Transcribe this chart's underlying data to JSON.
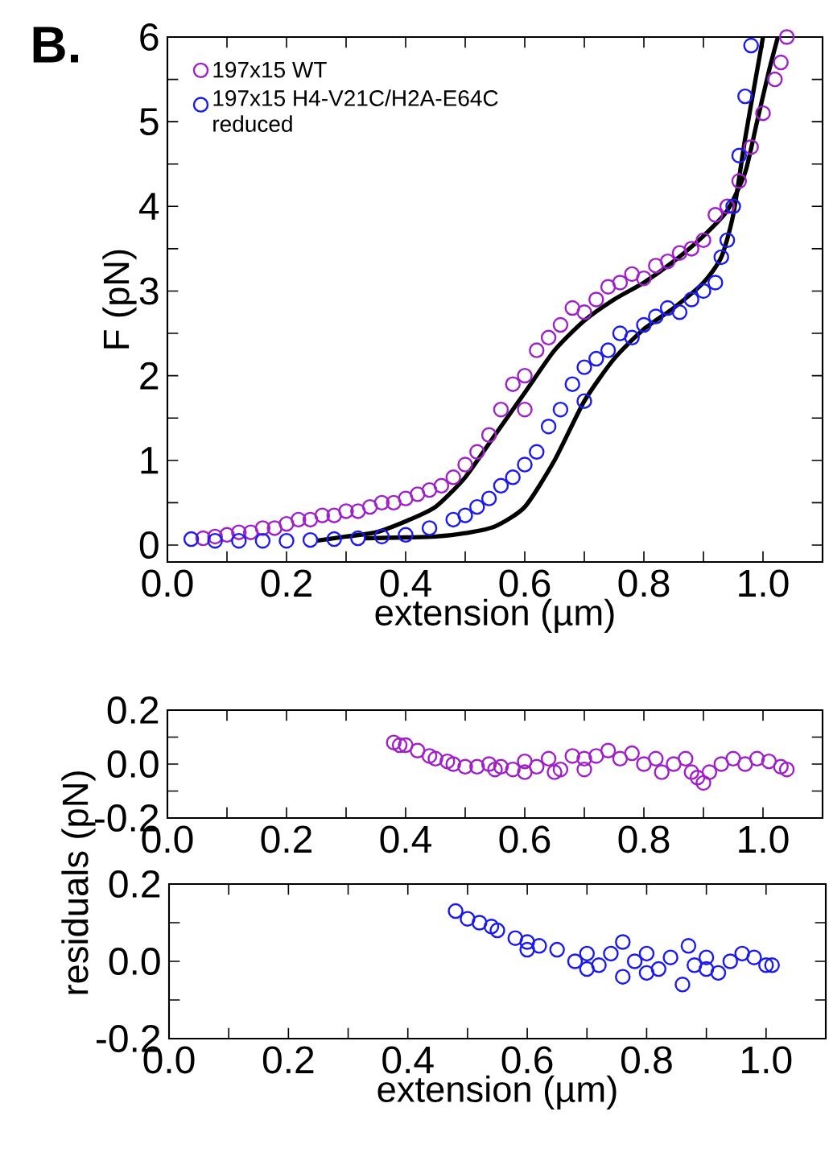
{
  "chart_data": [
    {
      "type": "scatter",
      "xlabel": "extension (µm)",
      "ylabel": "F (pN)",
      "annotations": [
        "B."
      ],
      "marker": "circle",
      "legend": "top left",
      "grid": false,
      "xlim": [
        0,
        1.1
      ],
      "ylim": [
        -0.2,
        6
      ],
      "xticks": [
        {
          "value": 0,
          "label": "0.0"
        },
        {
          "value": 0.1,
          "label": null
        },
        {
          "value": 0.2,
          "label": "0.2"
        },
        {
          "value": 0.3,
          "label": null
        },
        {
          "value": 0.4,
          "label": "0.4"
        },
        {
          "value": 0.5,
          "label": null
        },
        {
          "value": 0.6,
          "label": "0.6"
        },
        {
          "value": 0.7,
          "label": null
        },
        {
          "value": 0.8,
          "label": "0.8"
        },
        {
          "value": 0.9,
          "label": null
        },
        {
          "value": 1.0,
          "label": "1.0"
        }
      ],
      "yticks": [
        0,
        {
          "value": 0.5,
          "label": null
        },
        1,
        {
          "value": 1.5,
          "label": null
        },
        2,
        {
          "value": 2.5,
          "label": null
        },
        3,
        {
          "value": 3.5,
          "label": null
        },
        4,
        {
          "value": 4.5,
          "label": null
        },
        5,
        {
          "value": 5.5,
          "label": null
        },
        6
      ],
      "series": [
        {
          "name": "197x15 WT",
          "color": "#a020c8",
          "x": [
            0.06,
            0.08,
            0.1,
            0.12,
            0.14,
            0.16,
            0.18,
            0.2,
            0.22,
            0.24,
            0.26,
            0.28,
            0.3,
            0.32,
            0.34,
            0.36,
            0.38,
            0.4,
            0.42,
            0.44,
            0.46,
            0.48,
            0.5,
            0.52,
            0.54,
            0.56,
            0.58,
            0.6,
            0.6,
            0.62,
            0.64,
            0.66,
            0.68,
            0.7,
            0.72,
            0.74,
            0.76,
            0.78,
            0.8,
            0.82,
            0.84,
            0.86,
            0.88,
            0.9,
            0.92,
            0.94,
            0.96,
            0.98,
            1.0,
            1.02,
            1.03,
            1.04
          ],
          "values": [
            0.08,
            0.1,
            0.12,
            0.15,
            0.15,
            0.2,
            0.2,
            0.25,
            0.3,
            0.3,
            0.35,
            0.35,
            0.4,
            0.4,
            0.45,
            0.5,
            0.5,
            0.55,
            0.6,
            0.65,
            0.7,
            0.8,
            0.95,
            1.1,
            1.3,
            1.6,
            1.9,
            2.0,
            1.6,
            2.3,
            2.45,
            2.6,
            2.8,
            2.75,
            2.9,
            3.05,
            3.1,
            3.2,
            3.15,
            3.3,
            3.35,
            3.45,
            3.5,
            3.6,
            3.9,
            4.0,
            4.3,
            4.7,
            5.1,
            5.5,
            5.7,
            6.0
          ]
        },
        {
          "name": "197x15 H4-V21C/H2A-E64C reduced",
          "color": "#1a1aee",
          "x": [
            0.04,
            0.08,
            0.12,
            0.16,
            0.2,
            0.24,
            0.28,
            0.32,
            0.36,
            0.4,
            0.44,
            0.48,
            0.5,
            0.52,
            0.54,
            0.56,
            0.58,
            0.6,
            0.62,
            0.64,
            0.66,
            0.68,
            0.7,
            0.7,
            0.72,
            0.74,
            0.76,
            0.78,
            0.8,
            0.82,
            0.84,
            0.86,
            0.88,
            0.9,
            0.92,
            0.93,
            0.94,
            0.95,
            0.96,
            0.97,
            0.98
          ],
          "values": [
            0.07,
            0.05,
            0.05,
            0.05,
            0.05,
            0.06,
            0.07,
            0.08,
            0.1,
            0.12,
            0.2,
            0.3,
            0.35,
            0.45,
            0.55,
            0.7,
            0.8,
            0.95,
            1.1,
            1.4,
            1.6,
            1.9,
            2.1,
            1.7,
            2.2,
            2.3,
            2.5,
            2.45,
            2.6,
            2.7,
            2.8,
            2.75,
            2.9,
            3.0,
            3.1,
            3.4,
            3.6,
            4.0,
            4.6,
            5.3,
            5.9
          ]
        },
        {
          "type": "line",
          "color": "#000000",
          "line_style": "solid",
          "marker": "none",
          "x": [
            0.25,
            0.3,
            0.35,
            0.4,
            0.45,
            0.5,
            0.55,
            0.6,
            0.65,
            0.7,
            0.75,
            0.8,
            0.85,
            0.9,
            0.94,
            0.97,
            0.99,
            1.01,
            1.025
          ],
          "values": [
            0.05,
            0.1,
            0.15,
            0.28,
            0.45,
            0.8,
            1.3,
            1.8,
            2.3,
            2.65,
            2.9,
            3.1,
            3.35,
            3.65,
            3.95,
            4.4,
            5.0,
            5.6,
            6.0
          ]
        },
        {
          "type": "line",
          "color": "#000000",
          "line_style": "solid",
          "marker": "none",
          "x": [
            0.33,
            0.4,
            0.45,
            0.5,
            0.55,
            0.6,
            0.65,
            0.7,
            0.75,
            0.8,
            0.85,
            0.9,
            0.93,
            0.95,
            0.97,
            0.99,
            1.0
          ],
          "values": [
            0.08,
            0.09,
            0.1,
            0.14,
            0.22,
            0.45,
            1.0,
            1.7,
            2.2,
            2.55,
            2.8,
            3.1,
            3.4,
            3.9,
            4.8,
            5.6,
            6.0
          ]
        }
      ]
    },
    {
      "type": "scatter",
      "ylabel": "residuals (pN)",
      "marker": "circle",
      "grid": false,
      "xlim": [
        0,
        1.1
      ],
      "ylim": [
        -0.2,
        0.2
      ],
      "xticks": [
        {
          "value": 0,
          "label": "0.0"
        },
        {
          "value": 0.1,
          "label": null
        },
        {
          "value": 0.2,
          "label": "0.2"
        },
        {
          "value": 0.3,
          "label": null
        },
        {
          "value": 0.4,
          "label": "0.4"
        },
        {
          "value": 0.5,
          "label": null
        },
        {
          "value": 0.6,
          "label": "0.6"
        },
        {
          "value": 0.7,
          "label": null
        },
        {
          "value": 0.8,
          "label": "0.8"
        },
        {
          "value": 0.9,
          "label": null
        },
        {
          "value": 1.0,
          "label": "1.0"
        }
      ],
      "yticks": [
        -0.2,
        {
          "value": -0.1,
          "label": null
        },
        {
          "value": 0.0,
          "label": "0.0"
        },
        {
          "value": 0.1,
          "label": null
        },
        0.2
      ],
      "series": [
        {
          "color": "#a020c8",
          "x": [
            0.38,
            0.39,
            0.4,
            0.42,
            0.44,
            0.45,
            0.47,
            0.48,
            0.5,
            0.52,
            0.54,
            0.55,
            0.56,
            0.58,
            0.6,
            0.6,
            0.62,
            0.64,
            0.65,
            0.66,
            0.68,
            0.7,
            0.7,
            0.72,
            0.74,
            0.76,
            0.78,
            0.8,
            0.82,
            0.83,
            0.85,
            0.87,
            0.88,
            0.89,
            0.9,
            0.91,
            0.93,
            0.95,
            0.97,
            0.99,
            1.01,
            1.03,
            1.04
          ],
          "values": [
            0.08,
            0.07,
            0.07,
            0.05,
            0.03,
            0.02,
            0.01,
            0.0,
            -0.01,
            -0.01,
            0.0,
            -0.02,
            -0.01,
            -0.02,
            -0.03,
            0.01,
            -0.01,
            0.02,
            -0.03,
            -0.02,
            0.03,
            0.02,
            -0.02,
            0.03,
            0.05,
            0.02,
            0.04,
            0.0,
            0.02,
            -0.03,
            0.0,
            0.02,
            -0.03,
            -0.05,
            -0.07,
            -0.03,
            0.0,
            0.02,
            0.0,
            0.02,
            0.01,
            -0.01,
            -0.02
          ]
        }
      ]
    },
    {
      "type": "scatter",
      "xlabel": "extension (µm)",
      "marker": "circle",
      "grid": false,
      "xlim": [
        0,
        1.1
      ],
      "ylim": [
        -0.2,
        0.2
      ],
      "xticks": [
        {
          "value": 0,
          "label": "0.0"
        },
        {
          "value": 0.1,
          "label": null
        },
        {
          "value": 0.2,
          "label": "0.2"
        },
        {
          "value": 0.3,
          "label": null
        },
        {
          "value": 0.4,
          "label": "0.4"
        },
        {
          "value": 0.5,
          "label": null
        },
        {
          "value": 0.6,
          "label": "0.6"
        },
        {
          "value": 0.7,
          "label": null
        },
        {
          "value": 0.8,
          "label": "0.8"
        },
        {
          "value": 0.9,
          "label": null
        },
        {
          "value": 1.0,
          "label": "1.0"
        }
      ],
      "yticks": [
        0.2,
        {
          "value": 0.1,
          "label": null
        },
        {
          "value": 0.0,
          "label": "0.0"
        },
        {
          "value": -0.1,
          "label": null
        },
        -0.2
      ],
      "series": [
        {
          "color": "#1a1aee",
          "x": [
            0.48,
            0.5,
            0.52,
            0.54,
            0.55,
            0.58,
            0.6,
            0.6,
            0.62,
            0.65,
            0.68,
            0.7,
            0.7,
            0.72,
            0.74,
            0.76,
            0.76,
            0.78,
            0.8,
            0.8,
            0.82,
            0.84,
            0.86,
            0.87,
            0.88,
            0.9,
            0.9,
            0.92,
            0.94,
            0.96,
            0.98,
            1.0,
            1.01
          ],
          "values": [
            0.13,
            0.11,
            0.1,
            0.09,
            0.08,
            0.06,
            0.05,
            0.03,
            0.04,
            0.03,
            0.0,
            0.02,
            -0.02,
            -0.01,
            0.02,
            0.05,
            -0.04,
            0.0,
            0.02,
            -0.03,
            -0.02,
            0.01,
            -0.06,
            0.04,
            -0.01,
            0.01,
            -0.02,
            -0.03,
            0.0,
            0.02,
            0.01,
            -0.01,
            -0.01
          ]
        }
      ]
    }
  ]
}
